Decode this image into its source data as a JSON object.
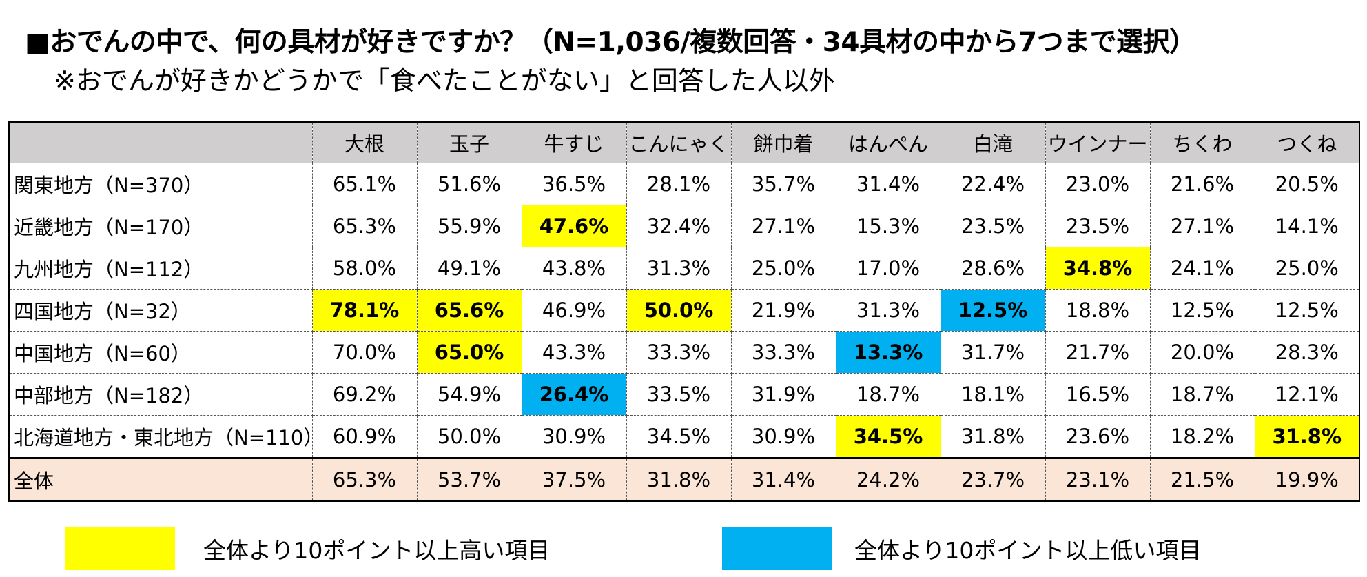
{
  "title": "■おでんの中で、何の具材が好きですか？（N=1,036/複数回答・34具材の中から7つまで選択）",
  "subtitle": "※おでんが好きかどうかで「食べたことがない」と回答した人以外",
  "colors": {
    "high": "#ffff00",
    "low": "#00b0f0",
    "header": "#d0cece",
    "total": "#fbe5d6"
  },
  "chart_data": {
    "type": "table",
    "columns": [
      "大根",
      "玉子",
      "牛すじ",
      "こんにゃく",
      "餅巾着",
      "はんぺん",
      "白滝",
      "ウインナー",
      "ちくわ",
      "つくね"
    ],
    "rows": [
      {
        "label": "関東地方（N=370）",
        "values": [
          "65.1%",
          "51.6%",
          "36.5%",
          "28.1%",
          "35.7%",
          "31.4%",
          "22.4%",
          "23.0%",
          "21.6%",
          "20.5%"
        ],
        "flags": [
          "",
          "",
          "",
          "",
          "",
          "",
          "",
          "",
          "",
          ""
        ]
      },
      {
        "label": "近畿地方（N=170）",
        "values": [
          "65.3%",
          "55.9%",
          "47.6%",
          "32.4%",
          "27.1%",
          "15.3%",
          "23.5%",
          "23.5%",
          "27.1%",
          "14.1%"
        ],
        "flags": [
          "",
          "",
          "hi",
          "",
          "",
          "",
          "",
          "",
          "",
          ""
        ]
      },
      {
        "label": "九州地方（N=112）",
        "values": [
          "58.0%",
          "49.1%",
          "43.8%",
          "31.3%",
          "25.0%",
          "17.0%",
          "28.6%",
          "34.8%",
          "24.1%",
          "25.0%"
        ],
        "flags": [
          "",
          "",
          "",
          "",
          "",
          "",
          "",
          "hi",
          "",
          ""
        ]
      },
      {
        "label": "四国地方（N=32）",
        "values": [
          "78.1%",
          "65.6%",
          "46.9%",
          "50.0%",
          "21.9%",
          "31.3%",
          "12.5%",
          "18.8%",
          "12.5%",
          "12.5%"
        ],
        "flags": [
          "hi",
          "hi",
          "",
          "hi",
          "",
          "",
          "lo",
          "",
          "",
          ""
        ]
      },
      {
        "label": "中国地方（N=60）",
        "values": [
          "70.0%",
          "65.0%",
          "43.3%",
          "33.3%",
          "33.3%",
          "13.3%",
          "31.7%",
          "21.7%",
          "20.0%",
          "28.3%"
        ],
        "flags": [
          "",
          "hi",
          "",
          "",
          "",
          "lo",
          "",
          "",
          "",
          ""
        ]
      },
      {
        "label": "中部地方（N=182）",
        "values": [
          "69.2%",
          "54.9%",
          "26.4%",
          "33.5%",
          "31.9%",
          "18.7%",
          "18.1%",
          "16.5%",
          "18.7%",
          "12.1%"
        ],
        "flags": [
          "",
          "",
          "lo",
          "",
          "",
          "",
          "",
          "",
          "",
          ""
        ]
      },
      {
        "label": "北海道地方・東北地方（N=110）",
        "values": [
          "60.9%",
          "50.0%",
          "30.9%",
          "34.5%",
          "30.9%",
          "34.5%",
          "31.8%",
          "23.6%",
          "18.2%",
          "31.8%"
        ],
        "flags": [
          "",
          "",
          "",
          "",
          "",
          "hi",
          "",
          "",
          "",
          "hi"
        ]
      }
    ],
    "total": {
      "label": "全体",
      "values": [
        "65.3%",
        "53.7%",
        "37.5%",
        "31.8%",
        "31.4%",
        "24.2%",
        "23.7%",
        "23.1%",
        "21.5%",
        "19.9%"
      ]
    }
  },
  "legend": {
    "high_label": "全体より10ポイント以上高い項目",
    "low_label": "全体より10ポイント以上低い項目"
  }
}
